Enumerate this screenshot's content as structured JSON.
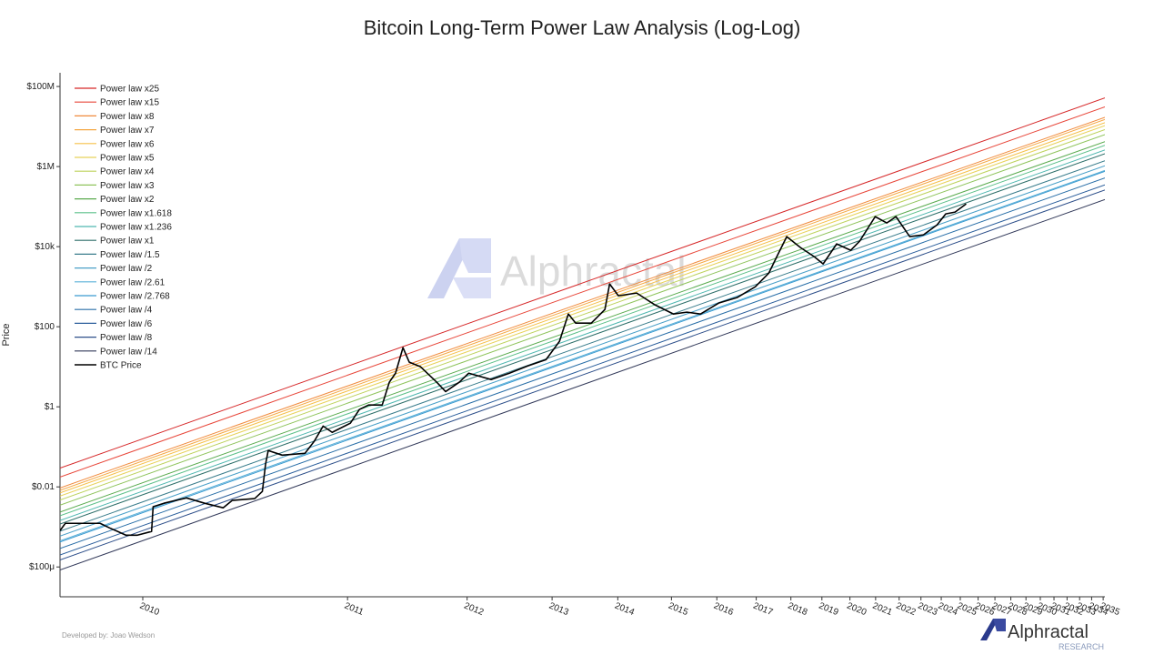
{
  "chart_data": {
    "type": "line",
    "title": "Bitcoin Long-Term Power Law Analysis (Log-Log)",
    "ylabel": "Price",
    "xscale": "log",
    "yscale": "log",
    "legend": "upper left",
    "watermark": "Alphractal",
    "credit": "Developed by: Joao Wedson",
    "brand": "Alphractal",
    "brand_sub": "RESEARCH",
    "xlim": [
      274,
      9550
    ],
    "ylim": [
      1.8e-05,
      220000000
    ],
    "xticks": [
      {
        "value": 363,
        "label": "2010"
      },
      {
        "value": 728,
        "label": "2011"
      },
      {
        "value": 1093,
        "label": "2012"
      },
      {
        "value": 1459,
        "label": "2013"
      },
      {
        "value": 1824,
        "label": "2014"
      },
      {
        "value": 2189,
        "label": "2015"
      },
      {
        "value": 2554,
        "label": "2016"
      },
      {
        "value": 2920,
        "label": "2017"
      },
      {
        "value": 3285,
        "label": "2018"
      },
      {
        "value": 3650,
        "label": "2019"
      },
      {
        "value": 4015,
        "label": "2020"
      },
      {
        "value": 4381,
        "label": "2021"
      },
      {
        "value": 4746,
        "label": "2022"
      },
      {
        "value": 5111,
        "label": "2023"
      },
      {
        "value": 5476,
        "label": "2024"
      },
      {
        "value": 5842,
        "label": "2025"
      },
      {
        "value": 6207,
        "label": "2026"
      },
      {
        "value": 6572,
        "label": "2027"
      },
      {
        "value": 6937,
        "label": "2028"
      },
      {
        "value": 7303,
        "label": "2029"
      },
      {
        "value": 7668,
        "label": "2030"
      },
      {
        "value": 8033,
        "label": "2031"
      },
      {
        "value": 8398,
        "label": "2032"
      },
      {
        "value": 8764,
        "label": "2033"
      },
      {
        "value": 9129,
        "label": "2034"
      },
      {
        "value": 9494,
        "label": "2035"
      }
    ],
    "yticks": [
      {
        "value": 100000000,
        "label": "$100M"
      },
      {
        "value": 1000000,
        "label": "$1M"
      },
      {
        "value": 10000,
        "label": "$10k"
      },
      {
        "value": 100,
        "label": "$100"
      },
      {
        "value": 1,
        "label": "$1"
      },
      {
        "value": 0.01,
        "label": "$0.01"
      },
      {
        "value": 0.0001,
        "label": "$100μ"
      }
    ],
    "series": [
      {
        "name": "Power law x25",
        "color": "#d62728",
        "x": [
          274,
          9550
        ],
        "values": [
          0.0294,
          52000000
        ]
      },
      {
        "name": "Power law x15",
        "color": "#e8473a",
        "x": [
          274,
          9550
        ],
        "values": [
          0.0176,
          31000000
        ]
      },
      {
        "name": "Power law x8",
        "color": "#f08a3c",
        "x": [
          274,
          9550
        ],
        "values": [
          0.0094,
          17000000
        ]
      },
      {
        "name": "Power law x7",
        "color": "#f5a742",
        "x": [
          274,
          9550
        ],
        "values": [
          0.0082,
          15000000
        ]
      },
      {
        "name": "Power law x6",
        "color": "#f6c04a",
        "x": [
          274,
          9550
        ],
        "values": [
          0.0071,
          12500000
        ]
      },
      {
        "name": "Power law x5",
        "color": "#e8d25a",
        "x": [
          274,
          9550
        ],
        "values": [
          0.0059,
          10500000
        ]
      },
      {
        "name": "Power law x4",
        "color": "#bdd25c",
        "x": [
          274,
          9550
        ],
        "values": [
          0.0047,
          8400000
        ]
      },
      {
        "name": "Power law x3",
        "color": "#8fc45c",
        "x": [
          274,
          9550
        ],
        "values": [
          0.0035,
          6300000
        ]
      },
      {
        "name": "Power law x2",
        "color": "#5aab4f",
        "x": [
          274,
          9550
        ],
        "values": [
          0.00235,
          4200000
        ]
      },
      {
        "name": "Power law x1.618",
        "color": "#5cc08a",
        "x": [
          274,
          9550
        ],
        "values": [
          0.0019,
          3400000
        ]
      },
      {
        "name": "Power law x1.236",
        "color": "#4fb7b0",
        "x": [
          274,
          9550
        ],
        "values": [
          0.00145,
          2600000
        ]
      },
      {
        "name": "Power law x1",
        "color": "#2e6f6a",
        "x": [
          274,
          9550
        ],
        "values": [
          0.00118,
          2100000
        ]
      },
      {
        "name": "Power law /1.5",
        "color": "#3a7d8c",
        "x": [
          274,
          9550
        ],
        "values": [
          0.00078,
          1400000
        ]
      },
      {
        "name": "Power law /2",
        "color": "#4aa0c8",
        "x": [
          274,
          9550
        ],
        "values": [
          0.00059,
          1050000
        ]
      },
      {
        "name": "Power law /2.61",
        "color": "#5ab0d8",
        "x": [
          274,
          9550
        ],
        "values": [
          0.00045,
          800000
        ]
      },
      {
        "name": "Power law /2.768",
        "color": "#3a9ad0",
        "x": [
          274,
          9550
        ],
        "values": [
          0.00042,
          760000
        ]
      },
      {
        "name": "Power law /4",
        "color": "#2a6fa8",
        "x": [
          274,
          9550
        ],
        "values": [
          0.00029,
          520000
        ]
      },
      {
        "name": "Power law /6",
        "color": "#2c5f9c",
        "x": [
          274,
          9550
        ],
        "values": [
          0.0002,
          350000
        ]
      },
      {
        "name": "Power law /8",
        "color": "#2e4f8a",
        "x": [
          274,
          9550
        ],
        "values": [
          0.00015,
          260000
        ]
      },
      {
        "name": "Power law /14",
        "color": "#333a5a",
        "x": [
          274,
          9550
        ],
        "values": [
          8.4e-05,
          150000
        ]
      },
      {
        "name": "BTC Price",
        "color": "#000000",
        "x": [
          274,
          279,
          295,
          314,
          324,
          343,
          356,
          374,
          376,
          390,
          421,
          448,
          477,
          492,
          531,
          545,
          551,
          556,
          583,
          630,
          650,
          670,
          691,
          735,
          758,
          782,
          819,
          839,
          857,
          879,
          898,
          933,
          986,
          1016,
          1064,
          1099,
          1186,
          1262,
          1343,
          1429,
          1496,
          1542,
          1581,
          1667,
          1746,
          1774,
          1828,
          1945,
          2070,
          2203,
          2307,
          2416,
          2570,
          2735,
          2911,
          3048,
          3141,
          3239,
          3394,
          3556,
          3665,
          3838,
          4025,
          4150,
          4375,
          4550,
          4695,
          4920,
          5155,
          5400,
          5560,
          5740,
          5960
        ],
        "values": [
          0.00081,
          0.00123,
          0.00123,
          0.00123,
          0.00095,
          0.00062,
          0.00062,
          0.00077,
          0.0032,
          0.0039,
          0.0053,
          0.0039,
          0.003,
          0.0046,
          0.0051,
          0.0077,
          0.037,
          0.081,
          0.062,
          0.069,
          0.137,
          0.33,
          0.23,
          0.39,
          0.86,
          1.11,
          1.11,
          4.1,
          6.9,
          30,
          13,
          10,
          4.1,
          2.4,
          4.1,
          6.9,
          4.8,
          6.9,
          10.5,
          15,
          43,
          208,
          123,
          123,
          270,
          1170,
          593,
          693,
          351,
          208,
          231,
          208,
          390,
          533,
          1000,
          2190,
          6240,
          17800,
          9490,
          5620,
          3700,
          11700,
          8110,
          13700,
          56200,
          39000,
          56200,
          17800,
          19700,
          35100,
          65800,
          73100,
          117000
        ]
      }
    ]
  }
}
